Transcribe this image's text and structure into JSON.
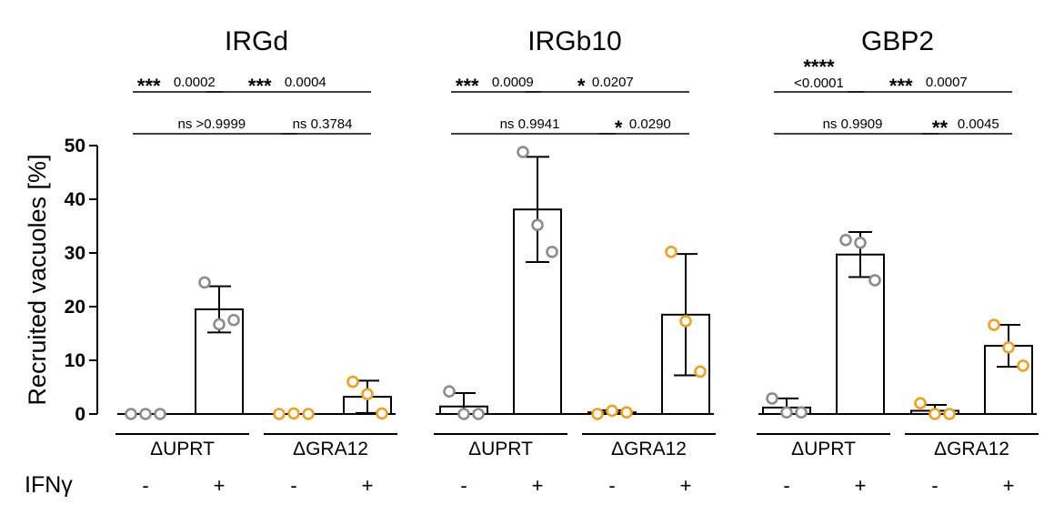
{
  "chart_data": {
    "type": "bar",
    "ylabel": "Recruited vacuoles [%]",
    "ylim": [
      0,
      50
    ],
    "yticks": [
      0,
      10,
      20,
      30,
      40,
      50
    ],
    "treatment_label": "IFNγ",
    "colors": {
      "ΔUPRT": "#8c8c8c",
      "ΔGRA12": "#f0a020",
      "bar": "#ffffff",
      "axis": "#000000"
    },
    "panels": [
      {
        "title": "IRGd",
        "bars": [
          {
            "strain": "ΔUPRT",
            "ifn": "-",
            "mean": 0,
            "sd": 0,
            "points": [
              0,
              0,
              0
            ]
          },
          {
            "strain": "ΔUPRT",
            "ifn": "+",
            "mean": 19.5,
            "sd": 4.3,
            "points": [
              24.5,
              16.7,
              17.5
            ]
          },
          {
            "strain": "ΔGRA12",
            "ifn": "-",
            "mean": 0,
            "sd": 0,
            "points": [
              0,
              0.1,
              0
            ]
          },
          {
            "strain": "ΔGRA12",
            "ifn": "+",
            "mean": 3.2,
            "sd": 3.0,
            "points": [
              6.0,
              3.7,
              0.1
            ]
          }
        ],
        "comparisons": [
          {
            "from": 0,
            "to": 1,
            "row": 0,
            "stars": "***",
            "p": "0.0002"
          },
          {
            "from": 1,
            "to": 3,
            "row": 0,
            "stars": "***",
            "p": "0.0004"
          },
          {
            "from": 0,
            "to": 2,
            "row": 1,
            "stars": "",
            "p": "ns >0.9999"
          },
          {
            "from": 2,
            "to": 3,
            "row": 1,
            "stars": "",
            "p": "ns 0.3784"
          }
        ]
      },
      {
        "title": "IRGb10",
        "bars": [
          {
            "strain": "ΔUPRT",
            "ifn": "-",
            "mean": 1.4,
            "sd": 2.5,
            "points": [
              4.2,
              0,
              0
            ]
          },
          {
            "strain": "ΔUPRT",
            "ifn": "+",
            "mean": 38.1,
            "sd": 9.8,
            "points": [
              48.8,
              35.2,
              30.2
            ]
          },
          {
            "strain": "ΔGRA12",
            "ifn": "-",
            "mean": 0.3,
            "sd": 0.4,
            "points": [
              0,
              0.6,
              0.3
            ]
          },
          {
            "strain": "ΔGRA12",
            "ifn": "+",
            "mean": 18.5,
            "sd": 11.3,
            "points": [
              30.2,
              17.3,
              7.9
            ]
          }
        ],
        "comparisons": [
          {
            "from": 0,
            "to": 1,
            "row": 0,
            "stars": "***",
            "p": "0.0009"
          },
          {
            "from": 1,
            "to": 3,
            "row": 0,
            "stars": "*",
            "p": "0.0207"
          },
          {
            "from": 0,
            "to": 2,
            "row": 1,
            "stars": "",
            "p": "ns 0.9941"
          },
          {
            "from": 2,
            "to": 3,
            "row": 1,
            "stars": "*",
            "p": "0.0290"
          }
        ]
      },
      {
        "title": "GBP2",
        "bars": [
          {
            "strain": "ΔUPRT",
            "ifn": "-",
            "mean": 1.2,
            "sd": 1.7,
            "points": [
              2.9,
              0.3,
              0.3
            ]
          },
          {
            "strain": "ΔUPRT",
            "ifn": "+",
            "mean": 29.7,
            "sd": 4.2,
            "points": [
              32.4,
              31.9,
              24.9
            ]
          },
          {
            "strain": "ΔGRA12",
            "ifn": "-",
            "mean": 0.6,
            "sd": 1.1,
            "points": [
              2.0,
              0,
              0
            ]
          },
          {
            "strain": "ΔGRA12",
            "ifn": "+",
            "mean": 12.7,
            "sd": 3.9,
            "points": [
              16.6,
              12.4,
              9.0
            ]
          }
        ],
        "comparisons": [
          {
            "from": 0,
            "to": 1,
            "row": 0,
            "stars": "****",
            "p": "<0.0001"
          },
          {
            "from": 1,
            "to": 3,
            "row": 0,
            "stars": "***",
            "p": "0.0007"
          },
          {
            "from": 0,
            "to": 2,
            "row": 1,
            "stars": "",
            "p": "ns 0.9909"
          },
          {
            "from": 2,
            "to": 3,
            "row": 1,
            "stars": "**",
            "p": "0.0045"
          }
        ]
      }
    ]
  }
}
